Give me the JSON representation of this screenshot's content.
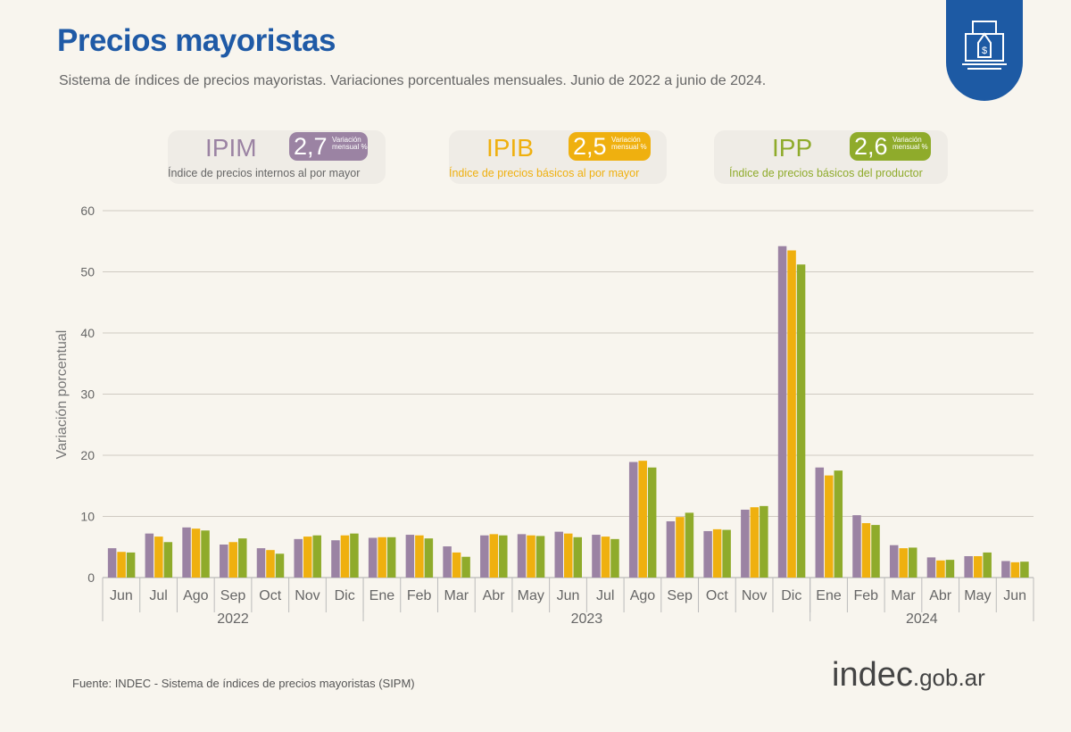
{
  "header": {
    "title": "Precios mayoristas",
    "subtitle": "Sistema de índices de precios mayoristas. Variaciones porcentuales mensuales. Junio de 2022 a junio de 2024."
  },
  "badge_icon": "price-tag-box-icon",
  "indicators": [
    {
      "abbr": "IPIM",
      "value": "2,7",
      "label": "Variación mensual %",
      "description": "Índice de precios internos al por mayor",
      "color": "#9b83a3"
    },
    {
      "abbr": "IPIB",
      "value": "2,5",
      "label": "Variación mensual %",
      "description": "Índice de precios básicos al por mayor",
      "color": "#efb00f"
    },
    {
      "abbr": "IPP",
      "value": "2,6",
      "label": "Variación mensual %",
      "description": "Índice de precios básicos del productor",
      "color": "#8fab2b"
    }
  ],
  "chart_data": {
    "type": "bar",
    "ylabel": "Variación porcentual",
    "ylim": [
      0,
      60
    ],
    "yticks": [
      0,
      10,
      20,
      30,
      40,
      50,
      60
    ],
    "grid": true,
    "categories": [
      "Jun",
      "Jul",
      "Ago",
      "Sep",
      "Oct",
      "Nov",
      "Dic",
      "Ene",
      "Feb",
      "Mar",
      "Abr",
      "May",
      "Jun",
      "Jul",
      "Ago",
      "Sep",
      "Oct",
      "Nov",
      "Dic",
      "Ene",
      "Feb",
      "Mar",
      "Abr",
      "May",
      "Jun"
    ],
    "years": [
      {
        "label": "2022",
        "span": 7
      },
      {
        "label": "2023",
        "span": 12
      },
      {
        "label": "2024",
        "span": 6
      }
    ],
    "series": [
      {
        "name": "IPIM",
        "color": "#9b83a3",
        "values": [
          4.8,
          7.2,
          8.2,
          5.4,
          4.8,
          6.3,
          6.1,
          6.5,
          7.0,
          5.1,
          6.9,
          7.1,
          7.5,
          7.0,
          18.9,
          9.2,
          7.6,
          11.1,
          54.2,
          18.0,
          10.2,
          5.3,
          3.3,
          3.5,
          2.7
        ]
      },
      {
        "name": "IPIB",
        "color": "#efb00f",
        "values": [
          4.2,
          6.7,
          8.0,
          5.8,
          4.5,
          6.7,
          6.9,
          6.6,
          6.9,
          4.1,
          7.1,
          6.9,
          7.2,
          6.7,
          19.1,
          9.9,
          7.9,
          11.5,
          53.5,
          16.7,
          8.9,
          4.8,
          2.8,
          3.5,
          2.5
        ]
      },
      {
        "name": "IPP",
        "color": "#8fab2b",
        "values": [
          4.1,
          5.8,
          7.7,
          6.4,
          3.9,
          6.9,
          7.2,
          6.6,
          6.4,
          3.4,
          6.9,
          6.8,
          6.6,
          6.3,
          18.0,
          10.6,
          7.8,
          11.7,
          51.2,
          17.5,
          8.6,
          4.9,
          2.9,
          4.1,
          2.6
        ]
      }
    ]
  },
  "footer": {
    "source": "Fuente: INDEC - Sistema de índices de precios mayoristas (SIPM)",
    "logo_main": "indec",
    "logo_suffix": ".gob.ar"
  }
}
